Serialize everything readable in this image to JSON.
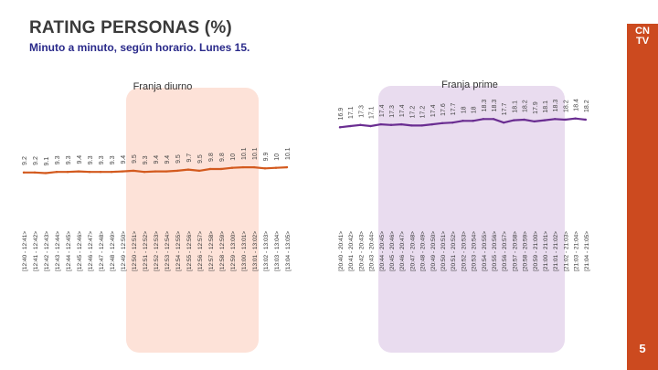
{
  "header": {
    "title": "RATING PERSONAS (%)",
    "subtitle": "Minuto a minuto, según horario. Lunes 15."
  },
  "logo": {
    "line1": "CN",
    "line2": "TV"
  },
  "page": {
    "number": "5"
  },
  "colors": {
    "diurno_line": "#d35a1e",
    "prime_line": "#6a2d91",
    "diurno_panel": "#fde2d8",
    "prime_panel": "#e9dcef",
    "accent": "#cc4a1f",
    "label_text": "#444444"
  },
  "chart_data": [
    {
      "type": "line",
      "title": "Franja diurno",
      "x": [
        "[12:40 - 12:41>",
        "[12:41 - 12:42>",
        "[12:42 - 12:43>",
        "[12:43 - 12:44>",
        "[12:44 - 12:45>",
        "[12:45 - 12:46>",
        "[12:46 - 12:47>",
        "[12:47 - 12:48>",
        "[12:48 - 12:49>",
        "[12:49 - 12:50>",
        "[12:50 - 12:51>",
        "[12:51 - 12:52>",
        "[12:52 - 12:53>",
        "[12:53 - 12:54>",
        "[12:54 - 12:55>",
        "[12:55 - 12:56>",
        "[12:56 - 12:57>",
        "[12:57 - 12:58>",
        "[12:58 - 12:59>",
        "[12:59 - 13:00>",
        "[13:00 - 13:01>",
        "[13:01 - 13:02>",
        "[13:02 - 13:03>",
        "[13:03 - 13:04>",
        "[13:04 - 13:05>"
      ],
      "labels": [
        "9.2",
        "9.2",
        "9.1",
        "9.3",
        "9.3",
        "9.4",
        "9.3",
        "9.3",
        "9.3",
        "9.4",
        "9.5",
        "9.3",
        "9.4",
        "9.4",
        "9.5",
        "9.7",
        "9.5",
        "9.8",
        "9.8",
        "10",
        "10.1",
        "10.1",
        "9.9",
        "10",
        "10.1"
      ],
      "values": [
        9.2,
        9.2,
        9.1,
        9.3,
        9.3,
        9.4,
        9.3,
        9.3,
        9.3,
        9.4,
        9.5,
        9.3,
        9.4,
        9.4,
        9.5,
        9.7,
        9.5,
        9.8,
        9.8,
        10,
        10.1,
        10.1,
        9.9,
        10,
        10.1
      ],
      "ylim": [
        0,
        25
      ]
    },
    {
      "type": "line",
      "title": "Franja prime",
      "x": [
        "[20:40 - 20:41>",
        "[20:41 - 20:42>",
        "[20:42 - 20:43>",
        "[20:43 - 20:44>",
        "[20:44 - 20:45>",
        "[20:45 - 20:46>",
        "[20:46 - 20:47>",
        "[20:47 - 20:48>",
        "[20:48 - 20:49>",
        "[20:49 - 20:50>",
        "[20:50 - 20:51>",
        "[20:51 - 20:52>",
        "[20:52 - 20:53>",
        "[20:53 - 20:54>",
        "[20:54 - 20:55>",
        "[20:55 - 20:56>",
        "[20:56 - 20:57>",
        "[20:57 - 20:58>",
        "[20:58 - 20:59>",
        "[20:59 - 21:00>",
        "[21:00 - 21:01>",
        "[21:01 - 21:02>",
        "[21:02 - 21:03>",
        "[21:03 - 21:04>",
        "[21:04 - 21:05>"
      ],
      "labels": [
        "16.9",
        "17.1",
        "17.3",
        "17.1",
        "17.4",
        "17.3",
        "17.4",
        "17.2",
        "17.2",
        "17.4",
        "17.6",
        "17.7",
        "18",
        "18",
        "18.3",
        "18.3",
        "17.7",
        "18.1",
        "18.2",
        "17.9",
        "18.1",
        "18.3",
        "18.2",
        "18.4",
        "18.2"
      ],
      "values": [
        16.9,
        17.1,
        17.3,
        17.1,
        17.4,
        17.3,
        17.4,
        17.2,
        17.2,
        17.4,
        17.6,
        17.7,
        18,
        18,
        18.3,
        18.3,
        17.7,
        18.1,
        18.2,
        17.9,
        18.1,
        18.3,
        18.2,
        18.4,
        18.2
      ],
      "ylim": [
        0,
        25
      ]
    }
  ]
}
